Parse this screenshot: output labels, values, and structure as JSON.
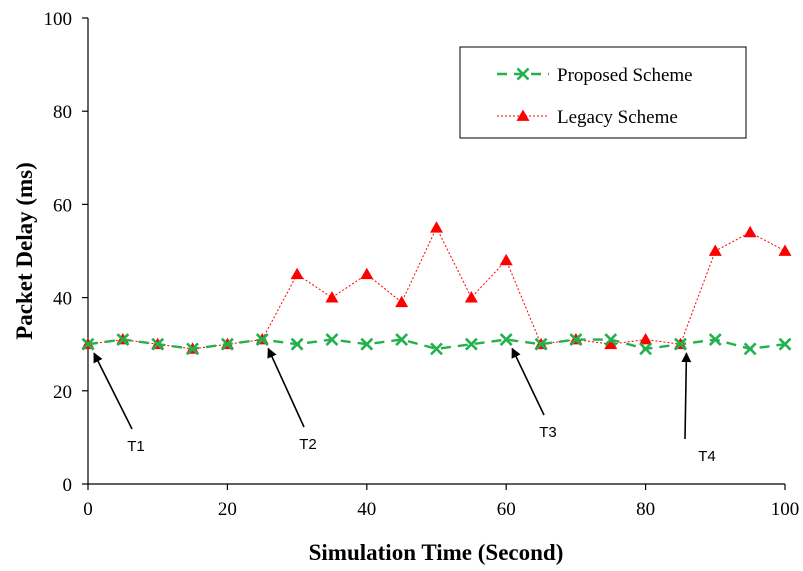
{
  "chart_data": {
    "type": "line",
    "xlabel": "Simulation Time (Second)",
    "ylabel": "Packet Delay (ms)",
    "xlim": [
      0,
      100
    ],
    "ylim": [
      0,
      100
    ],
    "xticks": [
      "0",
      "20",
      "40",
      "60",
      "80",
      "100"
    ],
    "yticks": [
      "0",
      "20",
      "40",
      "60",
      "80",
      "100"
    ],
    "grid": false,
    "legend_position": "top-right",
    "x": [
      0,
      5,
      10,
      15,
      20,
      25,
      30,
      35,
      40,
      45,
      50,
      55,
      60,
      65,
      70,
      75,
      80,
      85,
      90,
      95,
      100
    ],
    "series": [
      {
        "name": "Proposed Scheme",
        "color": "#22b14c",
        "marker": "x",
        "line": "dashed",
        "values": [
          30,
          31,
          30,
          29,
          30,
          31,
          30,
          31,
          30,
          31,
          29,
          30,
          31,
          30,
          31,
          31,
          29,
          30,
          31,
          29,
          30
        ]
      },
      {
        "name": "Legacy Scheme",
        "color": "#ff0000",
        "marker": "triangle",
        "line": "dotted",
        "values": [
          30,
          31,
          30,
          29,
          30,
          31,
          45,
          40,
          45,
          39,
          55,
          40,
          48,
          30,
          31,
          30,
          31,
          30,
          50,
          54,
          50
        ]
      }
    ],
    "annotations": [
      {
        "label": "T1",
        "x": 0,
        "y": 30
      },
      {
        "label": "T2",
        "x": 25,
        "y": 31
      },
      {
        "label": "T3",
        "x": 60,
        "y": 31
      },
      {
        "label": "T4",
        "x": 85,
        "y": 30
      }
    ]
  }
}
